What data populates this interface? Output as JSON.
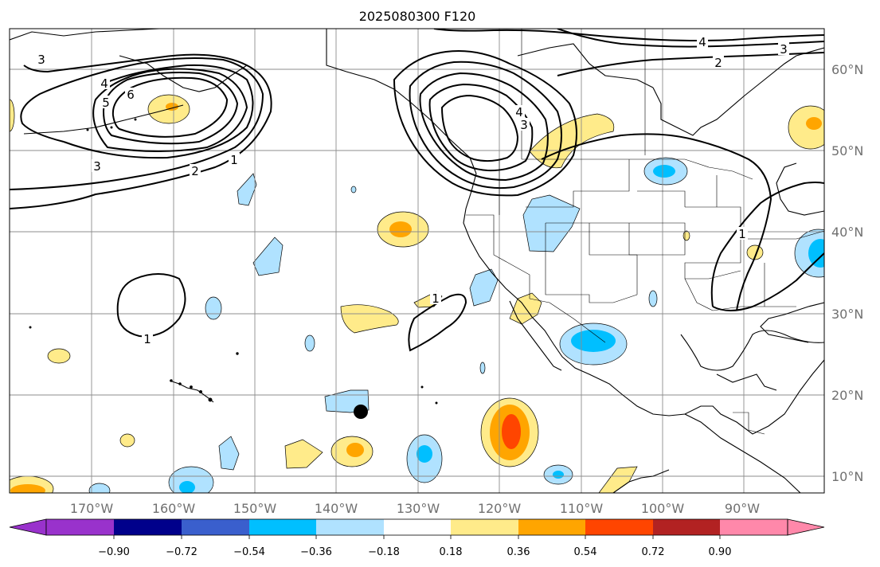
{
  "title": "2025080300 F120",
  "longitude_labels": [
    "170°W",
    "160°W",
    "150°W",
    "140°W",
    "130°W",
    "120°W",
    "110°W",
    "100°W",
    "90°W"
  ],
  "latitude_labels": [
    "60°N",
    "50°N",
    "40°N",
    "30°N",
    "20°N",
    "10°N"
  ],
  "contour_labels": [
    "3",
    "4",
    "5",
    "6",
    "3",
    "2",
    "1",
    "1",
    "1",
    "1",
    "4",
    "3",
    "4",
    "3",
    "2"
  ],
  "colorbar": {
    "ticks": [
      "−0.90",
      "−0.72",
      "−0.54",
      "−0.36",
      "−0.18",
      "0.18",
      "0.36",
      "0.54",
      "0.72",
      "0.90"
    ],
    "colors": [
      "#9932cc",
      "#00008b",
      "#3a5fcd",
      "#00bfff",
      "#b0e2ff",
      "#ffffff",
      "#ffeb8a",
      "#ffa500",
      "#ff4500",
      "#b22222",
      "#ff88aa"
    ]
  },
  "colors": {
    "shade_light_blue": "#b0e2ff",
    "shade_blue": "#00bfff",
    "shade_yellow": "#ffeb8a",
    "shade_orange": "#ffa500",
    "shade_red": "#ff4500"
  },
  "marker": "black-dot"
}
